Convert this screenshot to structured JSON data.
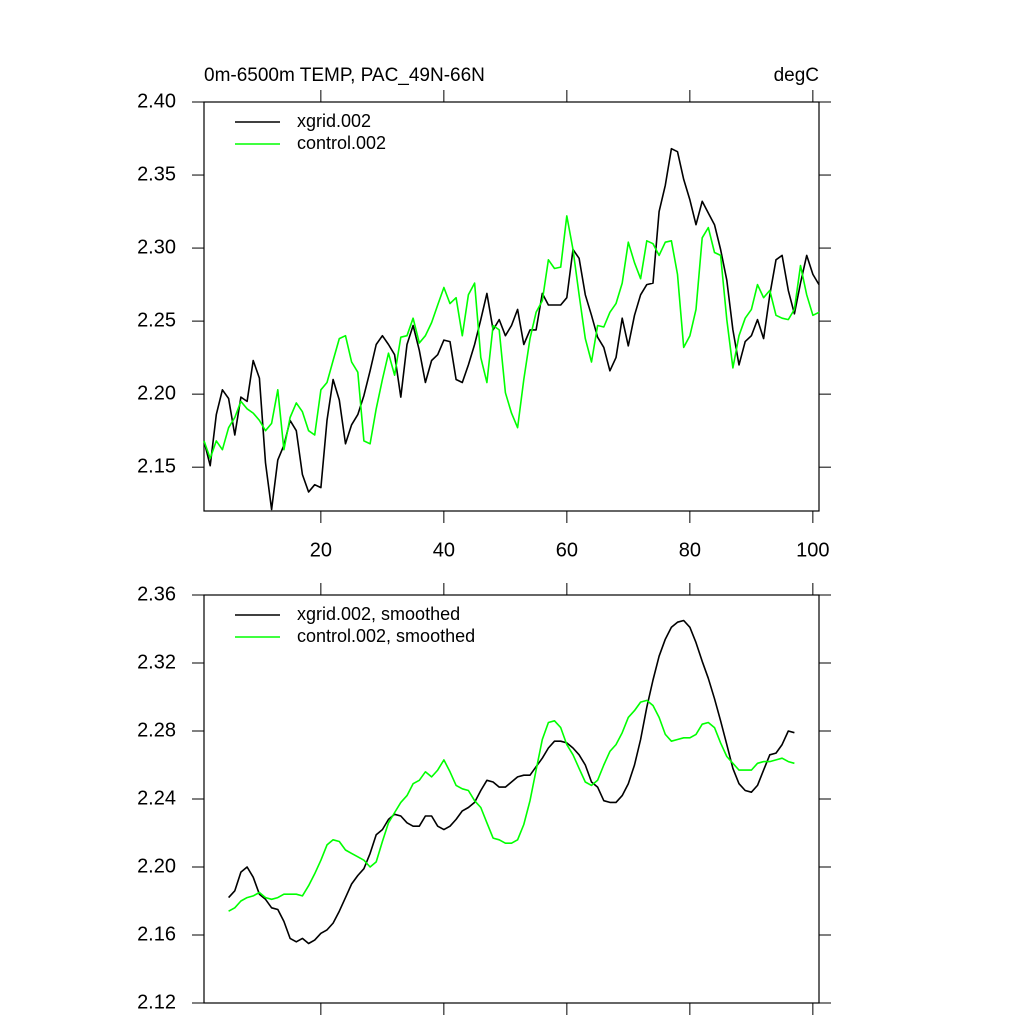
{
  "chart_data": [
    {
      "type": "line",
      "title": "0m-6500m TEMP, PAC_49N-66N",
      "title_right": "degC",
      "x": [
        1,
        2,
        3,
        4,
        5,
        6,
        7,
        8,
        9,
        10,
        11,
        12,
        13,
        14,
        15,
        16,
        17,
        18,
        19,
        20,
        21,
        22,
        23,
        24,
        25,
        26,
        27,
        28,
        29,
        30,
        31,
        32,
        33,
        34,
        35,
        36,
        37,
        38,
        39,
        40,
        41,
        42,
        43,
        44,
        45,
        46,
        47,
        48,
        49,
        50,
        51,
        52,
        53,
        54,
        55,
        56,
        57,
        58,
        59,
        60,
        61,
        62,
        63,
        64,
        65,
        66,
        67,
        68,
        69,
        70,
        71,
        72,
        73,
        74,
        75,
        76,
        77,
        78,
        79,
        80,
        81,
        82,
        83,
        84,
        85,
        86,
        87,
        88,
        89,
        90,
        91,
        92,
        93,
        94,
        95,
        96,
        97,
        98,
        99,
        100,
        101
      ],
      "series": [
        {
          "name": "xgrid.002",
          "color": "#000000",
          "values": [
            2.168,
            2.151,
            2.186,
            2.203,
            2.197,
            2.172,
            2.198,
            2.195,
            2.223,
            2.211,
            2.153,
            2.121,
            2.155,
            2.165,
            2.182,
            2.175,
            2.145,
            2.133,
            2.138,
            2.136,
            2.182,
            2.21,
            2.196,
            2.166,
            2.179,
            2.186,
            2.199,
            2.216,
            2.234,
            2.24,
            2.234,
            2.227,
            2.198,
            2.234,
            2.247,
            2.23,
            2.208,
            2.223,
            2.227,
            2.237,
            2.236,
            2.21,
            2.208,
            2.22,
            2.234,
            2.251,
            2.269,
            2.244,
            2.251,
            2.24,
            2.247,
            2.258,
            2.234,
            2.244,
            2.244,
            2.269,
            2.261,
            2.261,
            2.261,
            2.266,
            2.299,
            2.293,
            2.268,
            2.254,
            2.239,
            2.232,
            2.216,
            2.225,
            2.252,
            2.233,
            2.254,
            2.268,
            2.275,
            2.276,
            2.325,
            2.343,
            2.368,
            2.366,
            2.347,
            2.333,
            2.316,
            2.332,
            2.324,
            2.316,
            2.299,
            2.278,
            2.244,
            2.22,
            2.236,
            2.24,
            2.251,
            2.238,
            2.268,
            2.292,
            2.295,
            2.271,
            2.255,
            2.276,
            2.295,
            2.282,
            2.275
          ]
        },
        {
          "name": "control.002",
          "color": "#00ff00",
          "values": [
            2.168,
            2.156,
            2.168,
            2.162,
            2.177,
            2.184,
            2.195,
            2.19,
            2.187,
            2.182,
            2.175,
            2.18,
            2.203,
            2.162,
            2.184,
            2.194,
            2.188,
            2.175,
            2.172,
            2.203,
            2.208,
            2.223,
            2.238,
            2.24,
            2.222,
            2.215,
            2.168,
            2.166,
            2.19,
            2.21,
            2.228,
            2.213,
            2.239,
            2.24,
            2.252,
            2.235,
            2.24,
            2.249,
            2.261,
            2.273,
            2.262,
            2.266,
            2.24,
            2.268,
            2.276,
            2.225,
            2.208,
            2.247,
            2.244,
            2.201,
            2.187,
            2.177,
            2.21,
            2.238,
            2.256,
            2.264,
            2.292,
            2.286,
            2.287,
            2.322,
            2.299,
            2.268,
            2.238,
            2.222,
            2.247,
            2.246,
            2.256,
            2.262,
            2.276,
            2.304,
            2.29,
            2.279,
            2.305,
            2.303,
            2.295,
            2.304,
            2.305,
            2.282,
            2.232,
            2.24,
            2.258,
            2.307,
            2.314,
            2.297,
            2.295,
            2.251,
            2.218,
            2.24,
            2.252,
            2.258,
            2.275,
            2.266,
            2.271,
            2.254,
            2.252,
            2.251,
            2.258,
            2.288,
            2.268,
            2.254,
            2.256
          ]
        }
      ],
      "xlim": [
        1,
        101
      ],
      "xticks": [
        20,
        40,
        60,
        80,
        100
      ],
      "ylim": [
        2.12,
        2.4
      ],
      "yticks": [
        {
          "value": 2.15,
          "label": "2.15"
        },
        {
          "value": 2.2,
          "label": "2.20"
        },
        {
          "value": 2.25,
          "label": "2.25"
        },
        {
          "value": 2.3,
          "label": "2.30"
        },
        {
          "value": 2.35,
          "label": "2.35"
        },
        {
          "value": 2.4,
          "label": "2.40"
        }
      ],
      "legend": "top-left"
    },
    {
      "type": "line",
      "x": [
        5,
        6,
        7,
        8,
        9,
        10,
        11,
        12,
        13,
        14,
        15,
        16,
        17,
        18,
        19,
        20,
        21,
        22,
        23,
        24,
        25,
        26,
        27,
        28,
        29,
        30,
        31,
        32,
        33,
        34,
        35,
        36,
        37,
        38,
        39,
        40,
        41,
        42,
        43,
        44,
        45,
        46,
        47,
        48,
        49,
        50,
        51,
        52,
        53,
        54,
        55,
        56,
        57,
        58,
        59,
        60,
        61,
        62,
        63,
        64,
        65,
        66,
        67,
        68,
        69,
        70,
        71,
        72,
        73,
        74,
        75,
        76,
        77,
        78,
        79,
        80,
        81,
        82,
        83,
        84,
        85,
        86,
        87,
        88,
        89,
        90,
        91,
        92,
        93,
        94,
        95,
        96,
        97
      ],
      "series": [
        {
          "name": "xgrid.002, smoothed",
          "color": "#000000",
          "values": [
            2.182,
            2.186,
            2.197,
            2.2,
            2.194,
            2.184,
            2.181,
            2.176,
            2.175,
            2.168,
            2.158,
            2.156,
            2.158,
            2.155,
            2.157,
            2.161,
            2.163,
            2.167,
            2.174,
            2.182,
            2.19,
            2.195,
            2.199,
            2.208,
            2.219,
            2.222,
            2.228,
            2.231,
            2.23,
            2.226,
            2.224,
            2.224,
            2.23,
            2.23,
            2.224,
            2.222,
            2.224,
            2.228,
            2.233,
            2.235,
            2.238,
            2.245,
            2.251,
            2.25,
            2.247,
            2.247,
            2.25,
            2.253,
            2.254,
            2.254,
            2.259,
            2.264,
            2.27,
            2.274,
            2.274,
            2.273,
            2.27,
            2.266,
            2.26,
            2.25,
            2.247,
            2.239,
            2.238,
            2.238,
            2.242,
            2.249,
            2.26,
            2.275,
            2.294,
            2.31,
            2.324,
            2.334,
            2.341,
            2.344,
            2.345,
            2.341,
            2.332,
            2.321,
            2.311,
            2.299,
            2.286,
            2.272,
            2.258,
            2.249,
            2.245,
            2.244,
            2.248,
            2.257,
            2.266,
            2.267,
            2.272,
            2.28,
            2.279
          ]
        },
        {
          "name": "control.002, smoothed",
          "color": "#00ff00",
          "values": [
            2.174,
            2.176,
            2.18,
            2.182,
            2.183,
            2.185,
            2.182,
            2.181,
            2.182,
            2.184,
            2.184,
            2.184,
            2.183,
            2.189,
            2.196,
            2.204,
            2.213,
            2.216,
            2.215,
            2.21,
            2.208,
            2.206,
            2.204,
            2.2,
            2.203,
            2.215,
            2.226,
            2.232,
            2.238,
            2.242,
            2.249,
            2.251,
            2.256,
            2.253,
            2.257,
            2.263,
            2.256,
            2.248,
            2.246,
            2.245,
            2.239,
            2.235,
            2.226,
            2.217,
            2.216,
            2.214,
            2.214,
            2.216,
            2.225,
            2.239,
            2.257,
            2.275,
            2.285,
            2.286,
            2.282,
            2.272,
            2.266,
            2.258,
            2.25,
            2.248,
            2.251,
            2.26,
            2.268,
            2.272,
            2.279,
            2.288,
            2.292,
            2.297,
            2.298,
            2.295,
            2.288,
            2.278,
            2.274,
            2.275,
            2.276,
            2.276,
            2.278,
            2.284,
            2.285,
            2.282,
            2.273,
            2.265,
            2.261,
            2.257,
            2.257,
            2.257,
            2.261,
            2.262,
            2.262,
            2.263,
            2.264,
            2.262,
            2.261
          ]
        }
      ],
      "xlim": [
        1,
        101
      ],
      "xticks": [
        20,
        40,
        60,
        80,
        100
      ],
      "ylim": [
        2.12,
        2.36
      ],
      "yticks": [
        {
          "value": 2.12,
          "label": "2.12"
        },
        {
          "value": 2.16,
          "label": "2.16"
        },
        {
          "value": 2.2,
          "label": "2.20"
        },
        {
          "value": 2.24,
          "label": "2.24"
        },
        {
          "value": 2.28,
          "label": "2.28"
        },
        {
          "value": 2.32,
          "label": "2.32"
        },
        {
          "value": 2.36,
          "label": "2.36"
        }
      ],
      "legend": "top-left"
    }
  ]
}
